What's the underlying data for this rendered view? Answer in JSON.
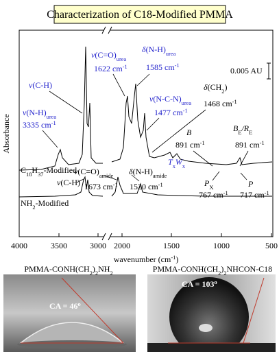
{
  "title": "Characterization of C18-Modified PMMA",
  "spectrum": {
    "y_label": "Absorbance",
    "x_label": [
      "wavenumber (cm",
      "-1",
      ")"
    ],
    "x_ticks": [
      "4000",
      "3500",
      "3000",
      "2000",
      "1500",
      "1000",
      "500"
    ],
    "scale_bar": "0.005 AU",
    "traces": [
      [
        "C",
        "18",
        "H",
        "37",
        "-Modified"
      ],
      [
        "NH",
        "2",
        "-Modified"
      ]
    ],
    "annotations": [
      {
        "lines": [
          [
            "ν",
            "(N-H)",
            "urea"
          ],
          [
            "3335 cm",
            "-1"
          ]
        ]
      },
      {
        "lines": [
          [
            "ν",
            "(C-H)"
          ]
        ]
      },
      {
        "lines": [
          [
            "ν",
            "(C=O)",
            "urea"
          ],
          [
            "1622 cm",
            "-1"
          ]
        ]
      },
      {
        "lines": [
          [
            "δ",
            "(N-H)",
            "urea"
          ],
          [
            "1585 cm",
            "-1"
          ]
        ]
      },
      {
        "lines": [
          [
            "ν",
            "(N-C-N)",
            "urea"
          ],
          [
            "1477 cm",
            "-1"
          ]
        ]
      },
      {
        "lines": [
          [
            "δ",
            "(CH",
            "2",
            ")"
          ],
          [
            "1468 cm",
            "-1"
          ]
        ]
      },
      {
        "lines": [
          [
            "B"
          ],
          [
            "891 cm",
            "-1"
          ]
        ]
      },
      {
        "lines": [
          [
            "B",
            "E",
            "/R",
            "E"
          ],
          [
            "891 cm",
            "-1"
          ]
        ]
      },
      {
        "lines": [
          [
            "T",
            "x",
            "W",
            "x"
          ]
        ]
      },
      {
        "lines": [
          [
            "P",
            "X"
          ],
          [
            "767 cm",
            "-1"
          ]
        ]
      },
      {
        "lines": [
          [
            "P"
          ],
          [
            "717 cm",
            "-1"
          ]
        ]
      },
      {
        "lines": [
          [
            "ν",
            "(C-H)"
          ]
        ]
      },
      {
        "lines": [
          [
            "ν",
            "(C=O)",
            "amide"
          ],
          [
            "1673 cm",
            "-1"
          ]
        ]
      },
      {
        "lines": [
          [
            "δ",
            "(N-H)",
            "amide"
          ],
          [
            "1520 cm",
            "-1"
          ]
        ]
      }
    ]
  },
  "photos": [
    {
      "caption": [
        "PMMA-CONH(CH",
        "2",
        ")",
        "2",
        "NH",
        "2"
      ],
      "label": [
        "CA = 46",
        "o"
      ]
    },
    {
      "caption": [
        "PMMA-CONH(CH",
        "2",
        ")",
        "2",
        "NHCON-C18"
      ],
      "label": [
        "CA = 103",
        "o"
      ]
    }
  ]
}
